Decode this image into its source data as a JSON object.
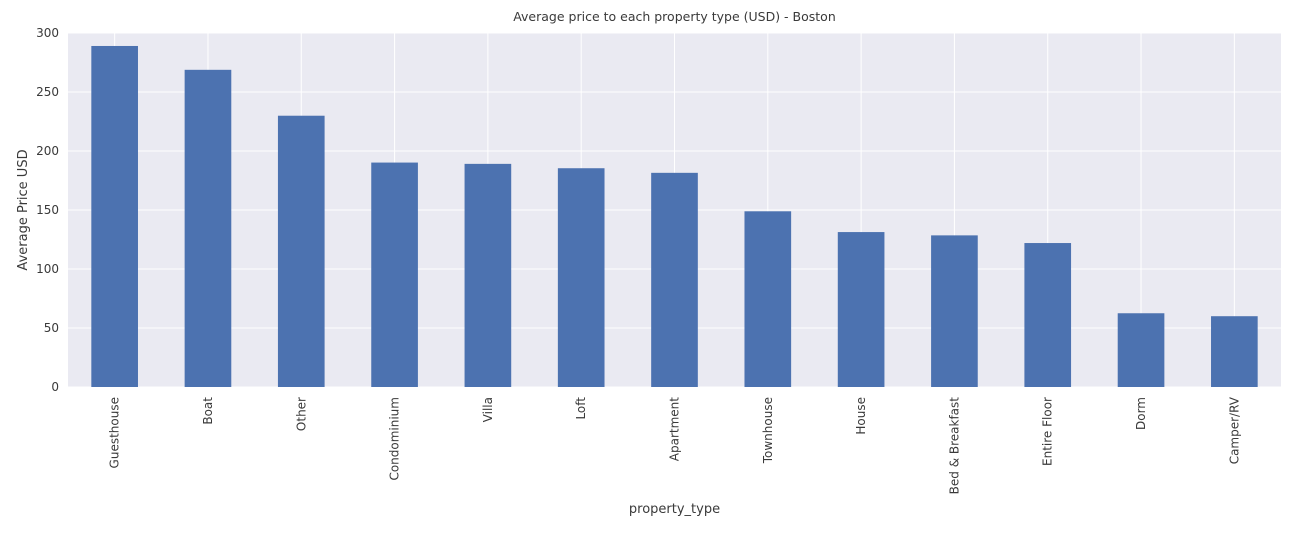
{
  "chart_data": {
    "type": "bar",
    "title": "Average price to each property type (USD) - Boston",
    "xlabel": "property_type",
    "ylabel": "Average Price USD",
    "categories": [
      "Guesthouse",
      "Boat",
      "Other",
      "Condominium",
      "Villa",
      "Loft",
      "Apartment",
      "Townhouse",
      "House",
      "Bed & Breakfast",
      "Entire Floor",
      "Dorm",
      "Camper/RV"
    ],
    "values": [
      289,
      268.8,
      229.9,
      190.2,
      189.1,
      185.4,
      181.5,
      148.9,
      131.3,
      128.5,
      122,
      62.5,
      60
    ],
    "ylim": [
      0,
      300
    ],
    "yticks": [
      0,
      50,
      100,
      150,
      200,
      250,
      300
    ],
    "grid": true,
    "colors": {
      "bar": "#4c72b0",
      "plot_background": "#eaeaf2",
      "grid": "#ffffff"
    }
  }
}
